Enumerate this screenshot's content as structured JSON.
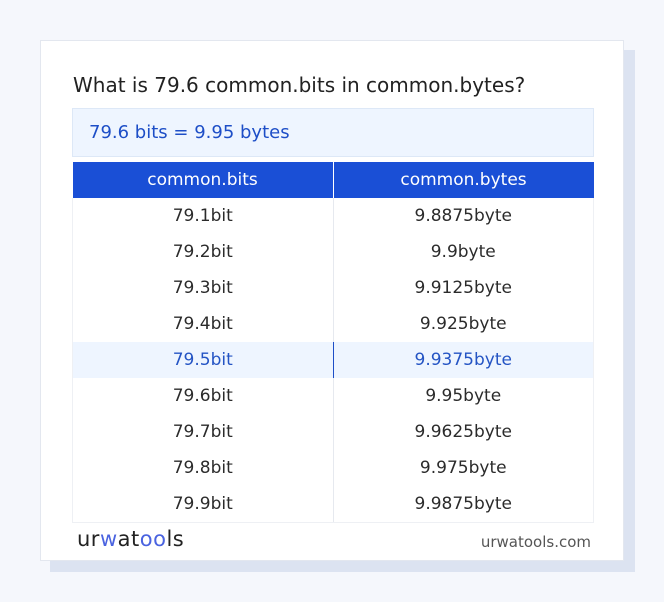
{
  "title": "What is 79.6 common.bits in common.bytes?",
  "result": "79.6 bits = 9.95 bytes",
  "table": {
    "headers": [
      "common.bits",
      "common.bytes"
    ],
    "rows": [
      [
        "79.1bit",
        "9.8875byte"
      ],
      [
        "79.2bit",
        "9.9byte"
      ],
      [
        "79.3bit",
        "9.9125byte"
      ],
      [
        "79.4bit",
        "9.925byte"
      ],
      [
        "79.5bit",
        "9.9375byte"
      ],
      [
        "79.6bit",
        "9.95byte"
      ],
      [
        "79.7bit",
        "9.9625byte"
      ],
      [
        "79.8bit",
        "9.975byte"
      ],
      [
        "79.9bit",
        "9.9875byte"
      ]
    ],
    "highlighted_row": 4
  },
  "footer": {
    "logo": "urwatools",
    "site": "urwatools.com"
  },
  "colors": {
    "accent": "#1a4fd6",
    "highlight_bg": "#eef5ff"
  }
}
